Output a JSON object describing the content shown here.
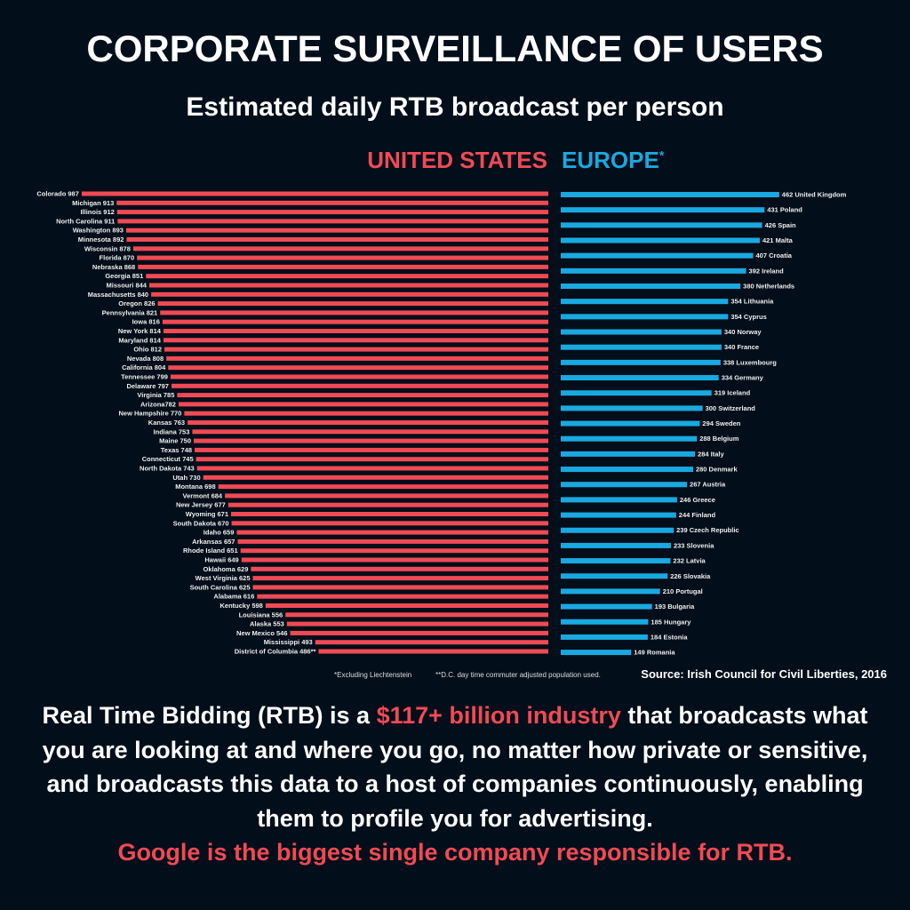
{
  "title": "CORPORATE SURVEILLANCE OF USERS",
  "subtitle": "Estimated daily RTB broadcast per person",
  "colors": {
    "us": "#f04a55",
    "europe": "#19a9e1",
    "background": "#020e19"
  },
  "chart_data": [
    {
      "type": "bar",
      "orientation": "horizontal",
      "series_name": "UNITED STATES",
      "direction": "leftward",
      "labels": [
        "Colorado 987",
        "Michigan 913",
        "Illinois 912",
        "North Carolina 911",
        "Washington 893",
        "Minnesota 892",
        "Wisconsin 878",
        "Florida 870",
        "Nebraska 868",
        "Georgia 851",
        "Missouri 844",
        "Massachusetts 840",
        "Oregon 826",
        "Pennsylvania 821",
        "Iowa 816",
        "New York 814",
        "Maryland 814",
        "Ohio 812",
        "Nevada 808",
        "California 804",
        "Tennessee 799",
        "Delaware 797",
        "Virginia 785",
        "Arizona782",
        "New Hampshire 770",
        "Kansas 763",
        "Indiana 753",
        "Maine 750",
        "Texas 748",
        "Connecticut 745",
        "North Dakota 743",
        "Utah 730",
        "Montana 698",
        "Vermont 684",
        "New Jersey 677",
        "Wyoming 671",
        "South Dakota 670",
        "Idaho 659",
        "Arkansas 657",
        "Rhode Island 651",
        "Hawaii 649",
        "Oklahoma 629",
        "West Virginia 625",
        "South Carolina 625",
        "Alabama 616",
        "Kentucky 598",
        "Louisiana 556",
        "Alaska 553",
        "New Mexico 546",
        "Mississippi 493",
        "District of Columbia 486**"
      ],
      "values": [
        987,
        913,
        912,
        911,
        893,
        892,
        878,
        870,
        868,
        851,
        844,
        840,
        826,
        821,
        816,
        814,
        814,
        812,
        808,
        804,
        799,
        797,
        785,
        782,
        770,
        763,
        753,
        750,
        748,
        745,
        743,
        730,
        698,
        684,
        677,
        671,
        670,
        659,
        657,
        651,
        649,
        629,
        625,
        625,
        616,
        598,
        556,
        553,
        546,
        493,
        486
      ]
    },
    {
      "type": "bar",
      "orientation": "horizontal",
      "series_name": "EUROPE",
      "series_mark": "*",
      "direction": "rightward",
      "labels": [
        "462 United Kingdom",
        "431 Poland",
        "426 Spain",
        "421 Malta",
        "407 Croatia",
        "392 Ireland",
        "380 Netherlands",
        "354 Lithuania",
        "354 Cyprus",
        "340 Norway",
        "340 France",
        "338 Luxembourg",
        "334 Germany",
        "319 Iceland",
        "300 Switzerland",
        "294 Sweden",
        "288 Belgium",
        "284 Italy",
        "280 Denmark",
        "267 Austria",
        "246 Greece",
        "244 Finland",
        "239 Czech Republic",
        "233 Slovenia",
        "232 Latvia",
        "226 Slovakia",
        "210 Portugal",
        "193 Bulgaria",
        "185 Hungary",
        "184 Estonia",
        "149 Romania"
      ],
      "values": [
        462,
        431,
        426,
        421,
        407,
        392,
        380,
        354,
        354,
        340,
        340,
        338,
        334,
        319,
        300,
        294,
        288,
        284,
        280,
        267,
        246,
        244,
        239,
        233,
        232,
        226,
        210,
        193,
        185,
        184,
        149
      ]
    }
  ],
  "notes": {
    "europe": "*Excluding Liechtenstein",
    "dc": "**D.C. day time commuter adjusted population used."
  },
  "source": "Source: Irish Council for Civil Liberties, 2016",
  "body": {
    "p1": "Real Time Bidding (RTB) is a ",
    "highlight": "$117+ billion industry",
    "p2": " that broadcasts what you are looking at and where you go, no matter how private or sensitive, and broadcasts this data to a host of companies continuously, enabling them to profile you for advertising.",
    "closing": "Google is the biggest single company responsible for RTB."
  }
}
